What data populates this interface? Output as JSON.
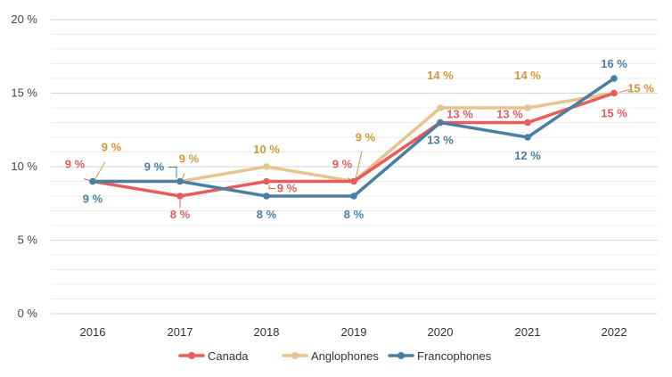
{
  "chart_data": {
    "type": "line",
    "title": "",
    "xlabel": "",
    "ylabel": "",
    "x": [
      "2016",
      "2017",
      "2018",
      "2019",
      "2020",
      "2021",
      "2022"
    ],
    "ylim": [
      0,
      20
    ],
    "yticks": [
      0,
      5,
      10,
      15,
      20
    ],
    "ytick_labels": [
      "0 %",
      "5 %",
      "10 %",
      "15 %",
      "20 %"
    ],
    "grid": true,
    "legend_position": "bottom",
    "series": [
      {
        "name": "Canada",
        "color": "#e85c5c",
        "values": [
          9,
          8,
          9,
          9,
          13,
          13,
          15
        ],
        "labels": [
          "9 %",
          "8 %",
          "9 %",
          "9 %",
          "13 %",
          "13 %",
          "15 %"
        ]
      },
      {
        "name": "Anglophones",
        "color": "#e8c38f",
        "label_color": "#d4973a",
        "values": [
          9,
          9,
          10,
          9,
          14,
          14,
          15
        ],
        "labels": [
          "9 %",
          "9 %",
          "10 %",
          "9 %",
          "14 %",
          "14 %",
          "15 %"
        ]
      },
      {
        "name": "Francophones",
        "color": "#4a7fa3",
        "values": [
          9,
          9,
          8,
          8,
          13,
          12,
          16
        ],
        "labels": [
          "9 %",
          "9 %",
          "8 %",
          "8 %",
          "13 %",
          "12 %",
          "16 %"
        ]
      }
    ]
  }
}
